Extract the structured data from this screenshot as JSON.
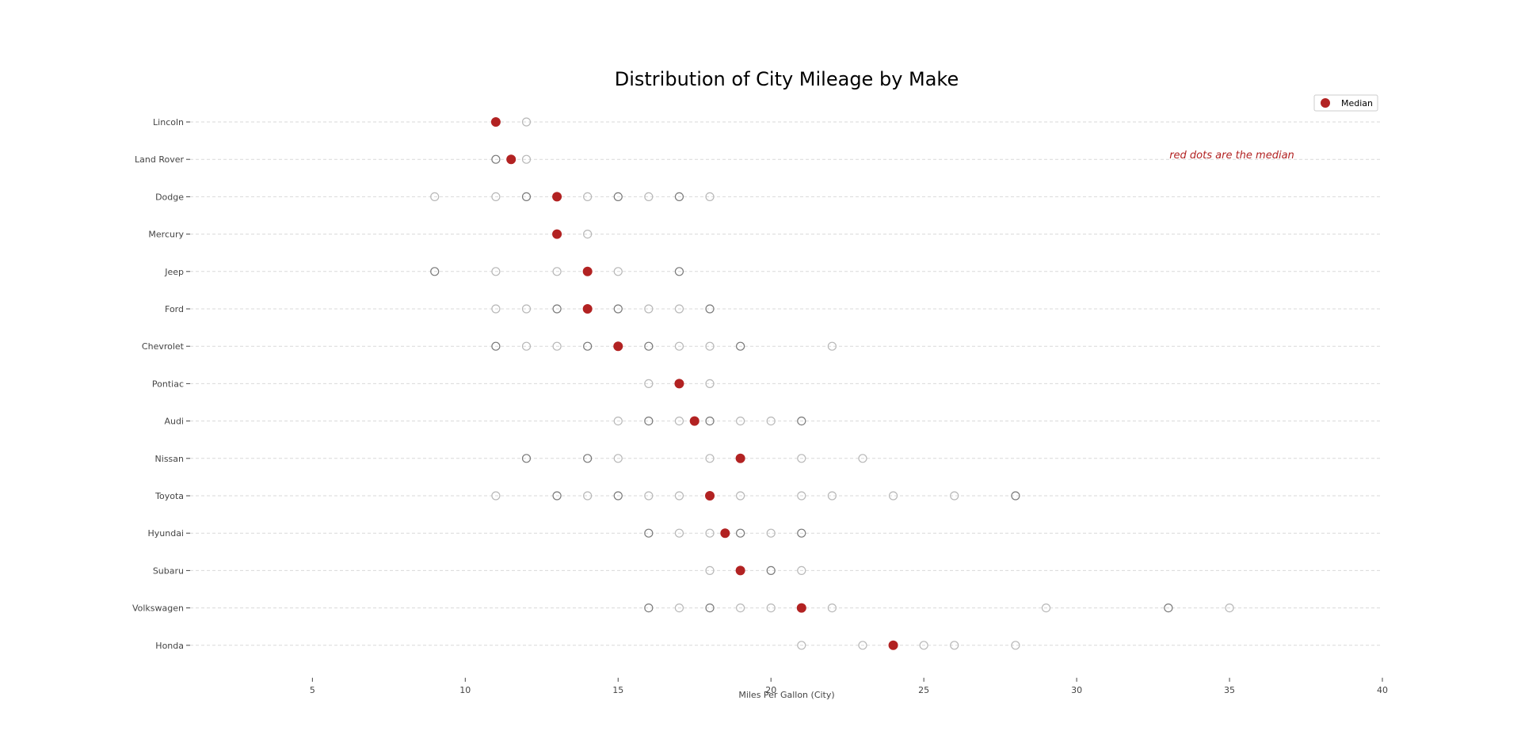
{
  "chart_data": {
    "type": "scatter",
    "title": "Distribution of City Mileage by Make",
    "xlabel": "Miles Per Gallon (City)",
    "ylabel": "",
    "xlim": [
      1,
      40
    ],
    "xticks": [
      5,
      10,
      15,
      20,
      25,
      30,
      35,
      40
    ],
    "grid": "horizontal dashed",
    "legend": {
      "placement": "top-right",
      "entries": [
        "Median"
      ]
    },
    "annotation": {
      "text": "red dots are the median",
      "color": "#b22222"
    },
    "colors": {
      "median": "#b22222",
      "point_edge": "#808080",
      "grid": "#d9d9d9",
      "text": "#444444"
    },
    "categories": [
      "Lincoln",
      "Land Rover",
      "Dodge",
      "Mercury",
      "Jeep",
      "Ford",
      "Chevrolet",
      "Pontiac",
      "Audi",
      "Nissan",
      "Toyota",
      "Hyundai",
      "Subaru",
      "Volkswagen",
      "Honda"
    ],
    "series": [
      {
        "make": "Lincoln",
        "points": [
          11,
          12
        ],
        "median": 11
      },
      {
        "make": "Land Rover",
        "points": [
          11,
          12
        ],
        "median": 11.5
      },
      {
        "make": "Dodge",
        "points": [
          9,
          11,
          12,
          13,
          14,
          15,
          16,
          17,
          18
        ],
        "median": 13
      },
      {
        "make": "Mercury",
        "points": [
          13,
          14
        ],
        "median": 13
      },
      {
        "make": "Jeep",
        "points": [
          9,
          11,
          13,
          14,
          15,
          17
        ],
        "median": 14
      },
      {
        "make": "Ford",
        "points": [
          11,
          12,
          13,
          14,
          15,
          16,
          17,
          18
        ],
        "median": 14
      },
      {
        "make": "Chevrolet",
        "points": [
          11,
          12,
          13,
          14,
          15,
          16,
          17,
          18,
          19,
          22
        ],
        "median": 15
      },
      {
        "make": "Pontiac",
        "points": [
          16,
          17,
          18
        ],
        "median": 17
      },
      {
        "make": "Audi",
        "points": [
          15,
          16,
          17,
          18,
          19,
          20,
          21
        ],
        "median": 17.5
      },
      {
        "make": "Nissan",
        "points": [
          12,
          14,
          15,
          18,
          19,
          21,
          23
        ],
        "median": 19
      },
      {
        "make": "Toyota",
        "points": [
          11,
          13,
          14,
          15,
          16,
          17,
          18,
          19,
          21,
          22,
          24,
          26,
          28
        ],
        "median": 18
      },
      {
        "make": "Hyundai",
        "points": [
          16,
          17,
          18,
          19,
          20,
          21
        ],
        "median": 18.5
      },
      {
        "make": "Subaru",
        "points": [
          18,
          19,
          20,
          21
        ],
        "median": 19
      },
      {
        "make": "Volkswagen",
        "points": [
          16,
          17,
          18,
          19,
          20,
          21,
          22,
          29,
          33,
          35
        ],
        "median": 21
      },
      {
        "make": "Honda",
        "points": [
          21,
          23,
          24,
          25,
          26,
          28
        ],
        "median": 24
      }
    ]
  }
}
